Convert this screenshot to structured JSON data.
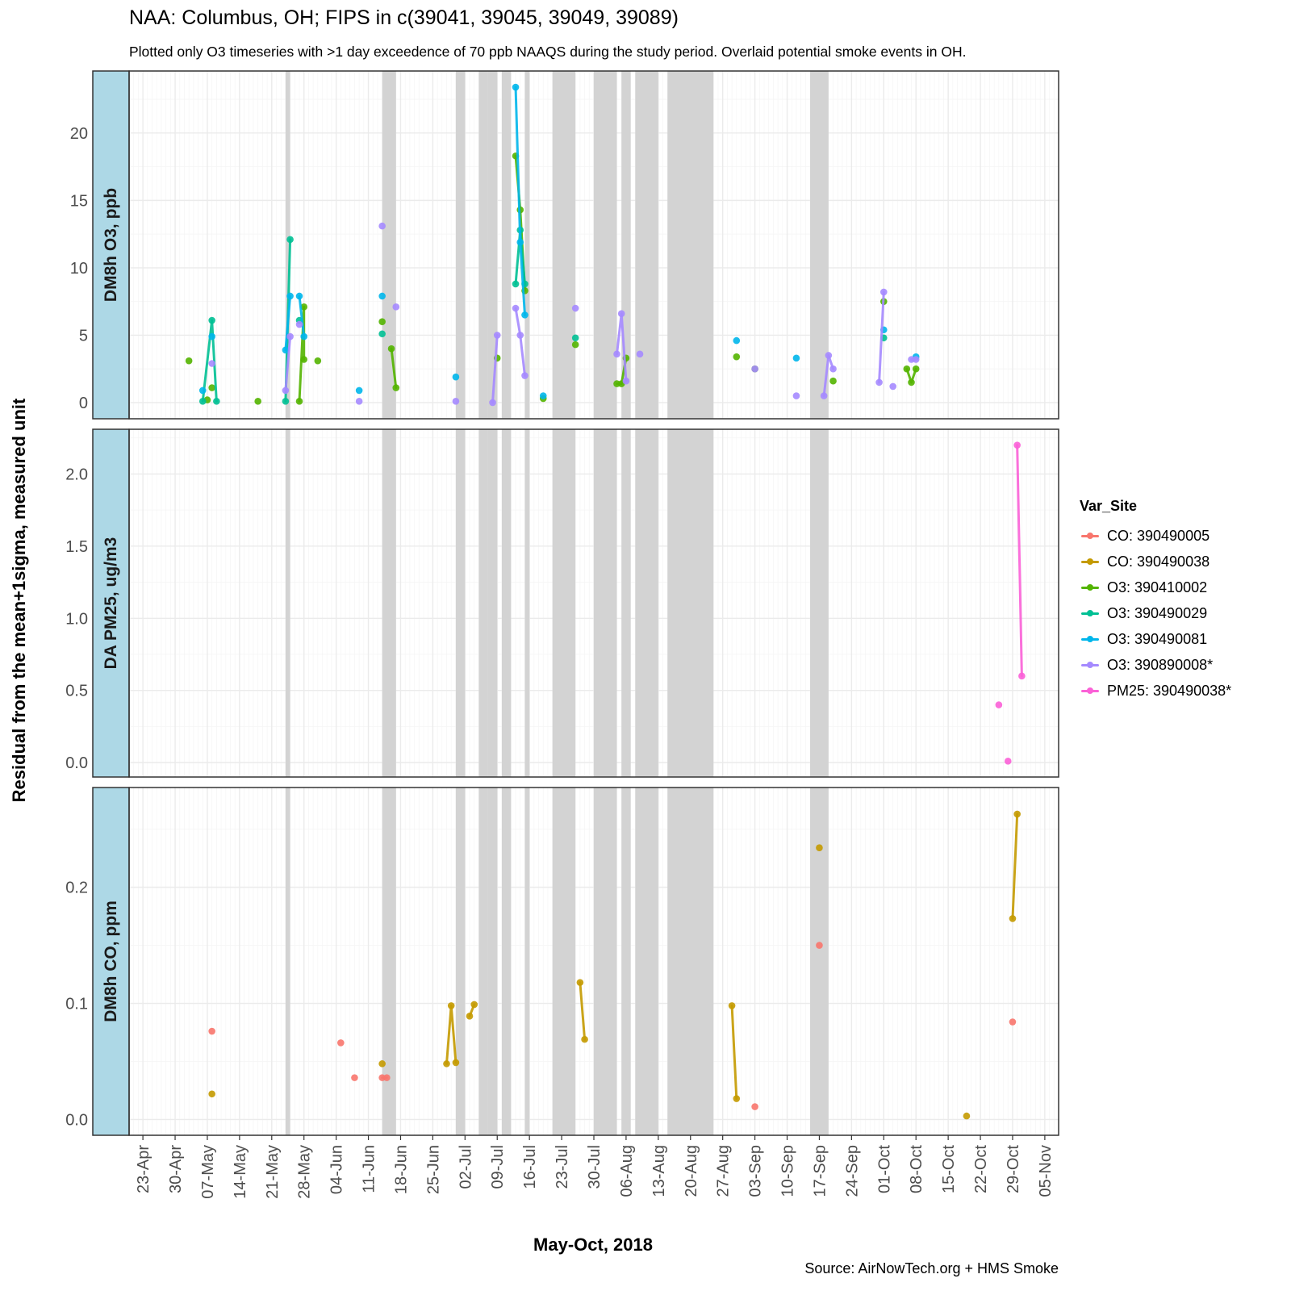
{
  "title": "NAA: Columbus, OH; FIPS in c(39041, 39045, 39049, 39089)",
  "subtitle": "Plotted only O3 timeseries with >1 day exceedence of 70 ppb NAAQS during the study period. Overlaid potential smoke events in OH.",
  "source": "Source: AirNowTech.org + HMS Smoke",
  "colors": {
    "strip_fill": "#add8e6",
    "smoke_fill": "#d3d3d3",
    "grid_major": "#ebebeb",
    "grid_minor": "#f5f5f5",
    "panel_border": "#333333"
  },
  "chart_data": {
    "type": "line",
    "layout": "faceted-vertical",
    "xlabel": "May-Oct, 2018",
    "ylabel": "Residual from the mean+1sigma, measured unit",
    "x_domain": [
      "2018-04-20",
      "2018-11-08"
    ],
    "x_tick_labels": [
      {
        "date": "2018-04-23",
        "label": "23-Apr"
      },
      {
        "date": "2018-04-30",
        "label": "30-Apr"
      },
      {
        "date": "2018-05-07",
        "label": "07-May"
      },
      {
        "date": "2018-05-14",
        "label": "14-May"
      },
      {
        "date": "2018-05-21",
        "label": "21-May"
      },
      {
        "date": "2018-05-28",
        "label": "28-May"
      },
      {
        "date": "2018-06-04",
        "label": "04-Jun"
      },
      {
        "date": "2018-06-11",
        "label": "11-Jun"
      },
      {
        "date": "2018-06-18",
        "label": "18-Jun"
      },
      {
        "date": "2018-06-25",
        "label": "25-Jun"
      },
      {
        "date": "2018-07-02",
        "label": "02-Jul"
      },
      {
        "date": "2018-07-09",
        "label": "09-Jul"
      },
      {
        "date": "2018-07-16",
        "label": "16-Jul"
      },
      {
        "date": "2018-07-23",
        "label": "23-Jul"
      },
      {
        "date": "2018-07-30",
        "label": "30-Jul"
      },
      {
        "date": "2018-08-06",
        "label": "06-Aug"
      },
      {
        "date": "2018-08-13",
        "label": "13-Aug"
      },
      {
        "date": "2018-08-20",
        "label": "20-Aug"
      },
      {
        "date": "2018-08-27",
        "label": "27-Aug"
      },
      {
        "date": "2018-09-03",
        "label": "03-Sep"
      },
      {
        "date": "2018-09-10",
        "label": "10-Sep"
      },
      {
        "date": "2018-09-17",
        "label": "17-Sep"
      },
      {
        "date": "2018-09-24",
        "label": "24-Sep"
      },
      {
        "date": "2018-10-01",
        "label": "01-Oct"
      },
      {
        "date": "2018-10-08",
        "label": "08-Oct"
      },
      {
        "date": "2018-10-15",
        "label": "15-Oct"
      },
      {
        "date": "2018-10-22",
        "label": "22-Oct"
      },
      {
        "date": "2018-10-29",
        "label": "29-Oct"
      },
      {
        "date": "2018-11-05",
        "label": "05-Nov"
      }
    ],
    "smoke_events": [
      [
        "2018-05-24",
        "2018-05-25"
      ],
      [
        "2018-06-14",
        "2018-06-17"
      ],
      [
        "2018-06-30",
        "2018-07-02"
      ],
      [
        "2018-07-05",
        "2018-07-07"
      ],
      [
        "2018-07-07",
        "2018-07-09"
      ],
      [
        "2018-07-10",
        "2018-07-12"
      ],
      [
        "2018-07-15",
        "2018-07-16"
      ],
      [
        "2018-07-21",
        "2018-07-26"
      ],
      [
        "2018-07-30",
        "2018-08-04"
      ],
      [
        "2018-08-05",
        "2018-08-07"
      ],
      [
        "2018-08-08",
        "2018-08-13"
      ],
      [
        "2018-08-15",
        "2018-08-25"
      ],
      [
        "2018-09-15",
        "2018-09-19"
      ]
    ],
    "panels": [
      {
        "id": "o3",
        "strip_label": "DM8h O3, ppb",
        "ylim": [
          -1.2,
          24.6
        ],
        "y_ticks": [
          0,
          5,
          10,
          15,
          20
        ],
        "y_tick_labels": [
          "0",
          "5",
          "10",
          "15",
          "20"
        ],
        "y_minor": [
          2.5,
          7.5,
          12.5,
          17.5,
          22.5
        ]
      },
      {
        "id": "pm25",
        "strip_label": "DA PM25, ug/m3",
        "ylim": [
          -0.1,
          2.31
        ],
        "y_ticks": [
          0.0,
          0.5,
          1.0,
          1.5,
          2.0
        ],
        "y_tick_labels": [
          "0.0",
          "0.5",
          "1.0",
          "1.5",
          "2.0"
        ],
        "y_minor": [
          0.25,
          0.75,
          1.25,
          1.75,
          2.25
        ]
      },
      {
        "id": "co",
        "strip_label": "DM8h CO, ppm",
        "ylim": [
          -0.0136,
          0.2859
        ],
        "y_ticks": [
          0.0,
          0.1,
          0.2
        ],
        "y_tick_labels": [
          "0.0",
          "0.1",
          "0.2"
        ],
        "y_minor": [
          0.05,
          0.15,
          0.25
        ]
      }
    ],
    "legend": {
      "title": "Var_Site",
      "position": "right"
    },
    "series": [
      {
        "name": "CO: 390490005",
        "color": "#f8766d",
        "panel": "co",
        "segments": [
          [
            [
              "2018-05-08",
              0.076
            ]
          ],
          [
            [
              "2018-06-05",
              0.066
            ]
          ],
          [
            [
              "2018-06-08",
              0.036
            ]
          ],
          [
            [
              "2018-06-14",
              0.036
            ],
            [
              "2018-06-15",
              0.036
            ]
          ],
          [
            [
              "2018-09-03",
              0.011
            ]
          ],
          [
            [
              "2018-09-17",
              0.15
            ]
          ],
          [
            [
              "2018-10-29",
              0.084
            ]
          ]
        ]
      },
      {
        "name": "CO: 390490038",
        "color": "#c49a00",
        "panel": "co",
        "segments": [
          [
            [
              "2018-05-08",
              0.022
            ]
          ],
          [
            [
              "2018-06-14",
              0.048
            ]
          ],
          [
            [
              "2018-06-28",
              0.048
            ],
            [
              "2018-06-29",
              0.098
            ],
            [
              "2018-06-30",
              0.049
            ]
          ],
          [
            [
              "2018-07-03",
              0.089
            ],
            [
              "2018-07-04",
              0.099
            ]
          ],
          [
            [
              "2018-07-27",
              0.118
            ],
            [
              "2018-07-28",
              0.069
            ]
          ],
          [
            [
              "2018-08-29",
              0.098
            ],
            [
              "2018-08-30",
              0.018
            ]
          ],
          [
            [
              "2018-09-17",
              0.234
            ]
          ],
          [
            [
              "2018-10-19",
              0.003
            ]
          ],
          [
            [
              "2018-10-29",
              0.173
            ],
            [
              "2018-10-30",
              0.263
            ]
          ]
        ]
      },
      {
        "name": "O3: 390410002",
        "color": "#53b400",
        "panel": "o3",
        "segments": [
          [
            [
              "2018-05-03",
              3.1
            ]
          ],
          [
            [
              "2018-05-07",
              0.2
            ]
          ],
          [
            [
              "2018-05-08",
              1.1
            ]
          ],
          [
            [
              "2018-05-18",
              0.1
            ]
          ],
          [
            [
              "2018-05-27",
              0.1
            ],
            [
              "2018-05-28",
              7.1
            ],
            [
              "2018-05-28",
              3.2
            ]
          ],
          [
            [
              "2018-05-31",
              3.1
            ]
          ],
          [
            [
              "2018-06-14",
              6.0
            ]
          ],
          [
            [
              "2018-06-16",
              4.0
            ],
            [
              "2018-06-17",
              1.1
            ]
          ],
          [
            [
              "2018-07-09",
              3.3
            ]
          ],
          [
            [
              "2018-07-13",
              18.3
            ],
            [
              "2018-07-14",
              14.3
            ],
            [
              "2018-07-15",
              8.3
            ]
          ],
          [
            [
              "2018-07-19",
              0.3
            ]
          ],
          [
            [
              "2018-07-26",
              4.3
            ]
          ],
          [
            [
              "2018-08-04",
              1.4
            ],
            [
              "2018-08-05",
              1.4
            ],
            [
              "2018-08-06",
              3.3
            ]
          ],
          [
            [
              "2018-08-30",
              3.4
            ]
          ],
          [
            [
              "2018-09-03",
              2.5
            ]
          ],
          [
            [
              "2018-09-20",
              1.6
            ]
          ],
          [
            [
              "2018-10-01",
              7.5
            ]
          ],
          [
            [
              "2018-10-06",
              2.5
            ],
            [
              "2018-10-07",
              1.5
            ],
            [
              "2018-10-08",
              2.5
            ]
          ]
        ]
      },
      {
        "name": "O3: 390490029",
        "color": "#00c094",
        "panel": "o3",
        "segments": [
          [
            [
              "2018-05-06",
              0.1
            ],
            [
              "2018-05-08",
              6.1
            ],
            [
              "2018-05-09",
              0.1
            ]
          ],
          [
            [
              "2018-05-24",
              0.1
            ],
            [
              "2018-05-25",
              12.1
            ]
          ],
          [
            [
              "2018-05-27",
              6.1
            ]
          ],
          [
            [
              "2018-06-14",
              5.1
            ]
          ],
          [
            [
              "2018-07-13",
              8.8
            ],
            [
              "2018-07-14",
              12.8
            ],
            [
              "2018-07-15",
              8.8
            ]
          ],
          [
            [
              "2018-07-26",
              4.8
            ]
          ],
          [
            [
              "2018-10-01",
              4.8
            ]
          ]
        ]
      },
      {
        "name": "O3: 390490081",
        "color": "#00b6eb",
        "panel": "o3",
        "segments": [
          [
            [
              "2018-05-06",
              0.9
            ]
          ],
          [
            [
              "2018-05-08",
              4.9
            ]
          ],
          [
            [
              "2018-05-24",
              3.9
            ],
            [
              "2018-05-25",
              7.9
            ]
          ],
          [
            [
              "2018-05-27",
              7.9
            ],
            [
              "2018-05-28",
              4.9
            ]
          ],
          [
            [
              "2018-06-09",
              0.9
            ]
          ],
          [
            [
              "2018-06-14",
              7.9
            ]
          ],
          [
            [
              "2018-06-30",
              1.9
            ]
          ],
          [
            [
              "2018-07-13",
              23.4
            ],
            [
              "2018-07-14",
              11.9
            ],
            [
              "2018-07-15",
              6.5
            ]
          ],
          [
            [
              "2018-07-19",
              0.5
            ]
          ],
          [
            [
              "2018-08-30",
              4.6
            ]
          ],
          [
            [
              "2018-09-12",
              3.3
            ]
          ],
          [
            [
              "2018-10-01",
              5.4
            ]
          ],
          [
            [
              "2018-10-08",
              3.4
            ]
          ]
        ]
      },
      {
        "name": "O3: 390890008*",
        "color": "#a58aff",
        "panel": "o3",
        "segments": [
          [
            [
              "2018-05-08",
              2.9
            ]
          ],
          [
            [
              "2018-05-24",
              0.9
            ],
            [
              "2018-05-25",
              4.9
            ]
          ],
          [
            [
              "2018-05-27",
              5.8
            ]
          ],
          [
            [
              "2018-06-09",
              0.1
            ]
          ],
          [
            [
              "2018-06-14",
              13.1
            ]
          ],
          [
            [
              "2018-06-17",
              7.1
            ]
          ],
          [
            [
              "2018-06-30",
              0.1
            ]
          ],
          [
            [
              "2018-07-08",
              0.0
            ],
            [
              "2018-07-09",
              5.0
            ]
          ],
          [
            [
              "2018-07-13",
              7.0
            ],
            [
              "2018-07-14",
              5.0
            ],
            [
              "2018-07-15",
              2.0
            ]
          ],
          [
            [
              "2018-07-26",
              7.0
            ]
          ],
          [
            [
              "2018-08-04",
              3.6
            ],
            [
              "2018-08-05",
              6.6
            ],
            [
              "2018-08-06",
              1.6
            ]
          ],
          [
            [
              "2018-08-09",
              3.6
            ]
          ],
          [
            [
              "2018-09-03",
              2.5
            ]
          ],
          [
            [
              "2018-09-12",
              0.5
            ]
          ],
          [
            [
              "2018-09-18",
              0.5
            ],
            [
              "2018-09-19",
              3.5
            ],
            [
              "2018-09-20",
              2.5
            ]
          ],
          [
            [
              "2018-09-30",
              1.5
            ],
            [
              "2018-10-01",
              8.2
            ]
          ],
          [
            [
              "2018-10-03",
              1.2
            ]
          ],
          [
            [
              "2018-10-07",
              3.2
            ],
            [
              "2018-10-08",
              3.2
            ]
          ]
        ]
      },
      {
        "name": "PM25: 390490038*",
        "color": "#fb61d7",
        "panel": "pm25",
        "segments": [
          [
            [
              "2018-10-26",
              0.4
            ]
          ],
          [
            [
              "2018-10-28",
              0.01
            ]
          ],
          [
            [
              "2018-10-30",
              2.2
            ],
            [
              "2018-10-31",
              0.6
            ]
          ]
        ]
      }
    ]
  }
}
